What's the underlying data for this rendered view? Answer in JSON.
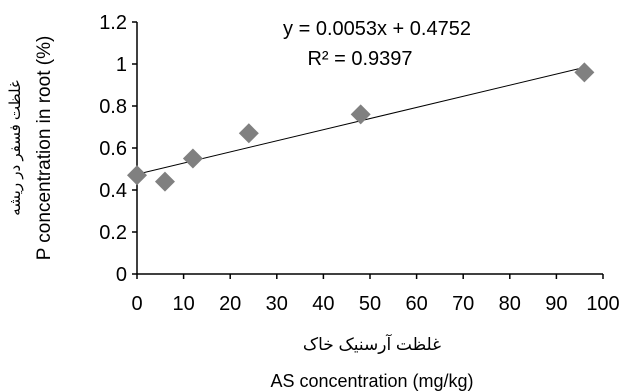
{
  "chart_data": {
    "type": "scatter",
    "x": [
      0,
      6,
      12,
      24,
      48,
      96
    ],
    "y": [
      0.47,
      0.44,
      0.55,
      0.67,
      0.76,
      0.96
    ],
    "xlim": [
      0,
      100
    ],
    "ylim": [
      0,
      1.2
    ],
    "xticks": [
      "0",
      "10",
      "20",
      "30",
      "40",
      "50",
      "60",
      "70",
      "80",
      "90",
      "100"
    ],
    "yticks": [
      "0",
      "0.2",
      "0.4",
      "0.6",
      "0.8",
      "1",
      "1.2"
    ],
    "xlabel_fa": "غلظت آرسنیک خاک",
    "xlabel": "AS concentration (mg/kg)",
    "ylabel_fa": "غلظت فسفر در ریشه",
    "ylabel": "P concentration in root (%)",
    "trendline": {
      "slope": 0.0053,
      "intercept": 0.4752
    },
    "equation": "y = 0.0053x + 0.4752",
    "r_squared": "R² = 0.9397",
    "marker": "diamond",
    "marker_color": "#808080",
    "grid": false,
    "legend": "none"
  }
}
